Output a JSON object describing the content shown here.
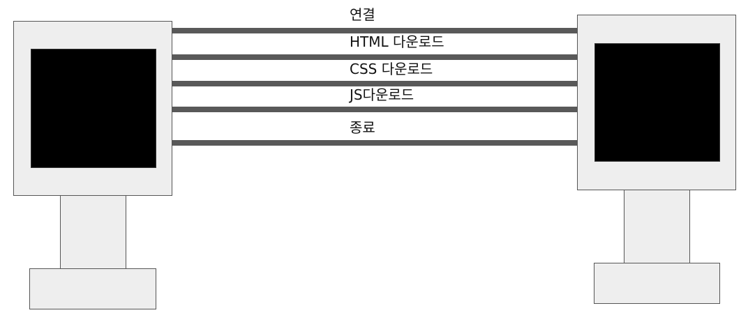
{
  "connection_steps": [
    {
      "label": "연결"
    },
    {
      "label": "HTML 다운로드"
    },
    {
      "label": "CSS 다운로드"
    },
    {
      "label": "JS다운로드"
    },
    {
      "label": "종료"
    }
  ],
  "colors": {
    "device_body": "#eeeeee",
    "device_screen": "#000000",
    "connection_line": "#595959",
    "outline": "#555555"
  }
}
